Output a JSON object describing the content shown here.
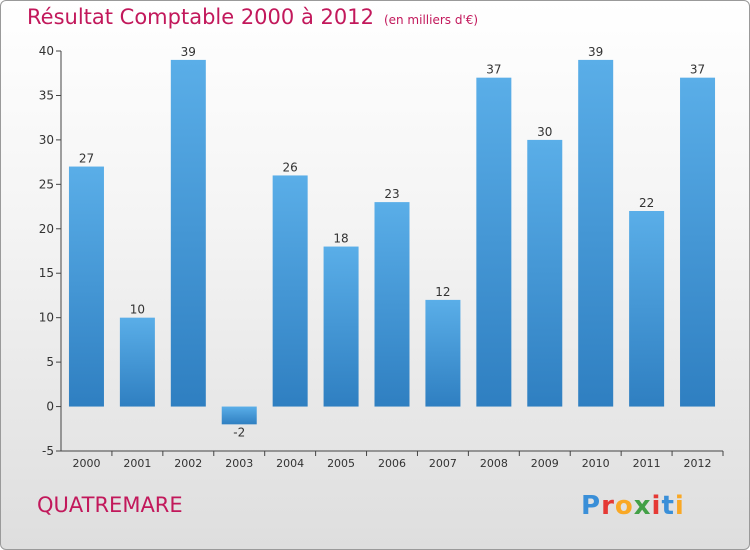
{
  "header": {
    "title": "Résultat Comptable 2000 à 2012",
    "subtitle": "(en milliers d'€)"
  },
  "footer": {
    "commune": "QUATREMARE",
    "logo_letters": [
      "P",
      "r",
      "o",
      "x",
      "i",
      "t",
      "i"
    ],
    "logo_colors": [
      "#3a8fd8",
      "#e53935",
      "#f9a825",
      "#43a047",
      "#e53935",
      "#3a8fd8",
      "#f9a825"
    ]
  },
  "chart_data": {
    "type": "bar",
    "categories": [
      "2000",
      "2001",
      "2002",
      "2003",
      "2004",
      "2005",
      "2006",
      "2007",
      "2008",
      "2009",
      "2010",
      "2011",
      "2012"
    ],
    "values": [
      27,
      10,
      39,
      -2,
      26,
      18,
      23,
      12,
      37,
      30,
      39,
      22,
      37
    ],
    "data_labels": [
      "27",
      "10",
      "39",
      "-2",
      "26",
      "18",
      "23",
      "12",
      "37",
      "30",
      "39",
      "22",
      "37"
    ],
    "ylim": [
      -5,
      40
    ],
    "yticks": [
      -5,
      0,
      5,
      10,
      15,
      20,
      25,
      30,
      35,
      40
    ],
    "title": "Résultat Comptable 2000 à 2012",
    "xlabel": "",
    "ylabel": "",
    "grid": false,
    "colors": {
      "bar_top": "#5aaee8",
      "bar_bottom": "#2f7fc1",
      "axis": "#444444",
      "text": "#333333"
    }
  }
}
